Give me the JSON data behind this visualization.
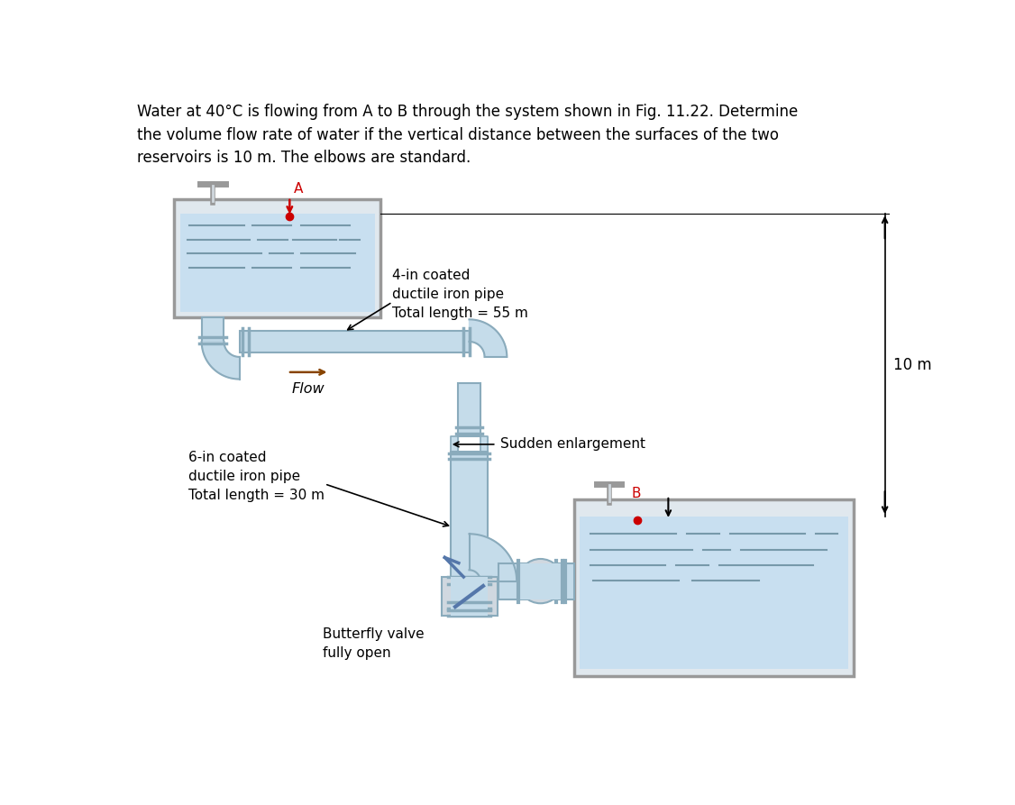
{
  "title_lines": [
    "Water at 40°C is flowing from A to B through the system shown in Fig. 11.22. Determine",
    "the volume flow rate of water if the vertical distance between the surfaces of the two",
    "reservoirs is 10 m. The elbows are standard."
  ],
  "pipe_color": "#c5dcea",
  "pipe_edge_color": "#8aabbc",
  "tank_water_color": "#c8dff0",
  "tank_edge_color": "#999999",
  "label_4in": "4-in coated\nductile iron pipe\nTotal length = 55 m",
  "label_6in": "6-in coated\nductile iron pipe\nTotal length = 30 m",
  "label_flow": "Flow",
  "label_sudden": "Sudden enlargement",
  "label_butterfly": "Butterfly valve\nfully open",
  "label_10m": "10 m",
  "label_A": "A",
  "label_B": "B",
  "bg_color": "#ffffff",
  "text_color": "#000000",
  "red_color": "#cc0000",
  "water_line_color": "#7799aa"
}
